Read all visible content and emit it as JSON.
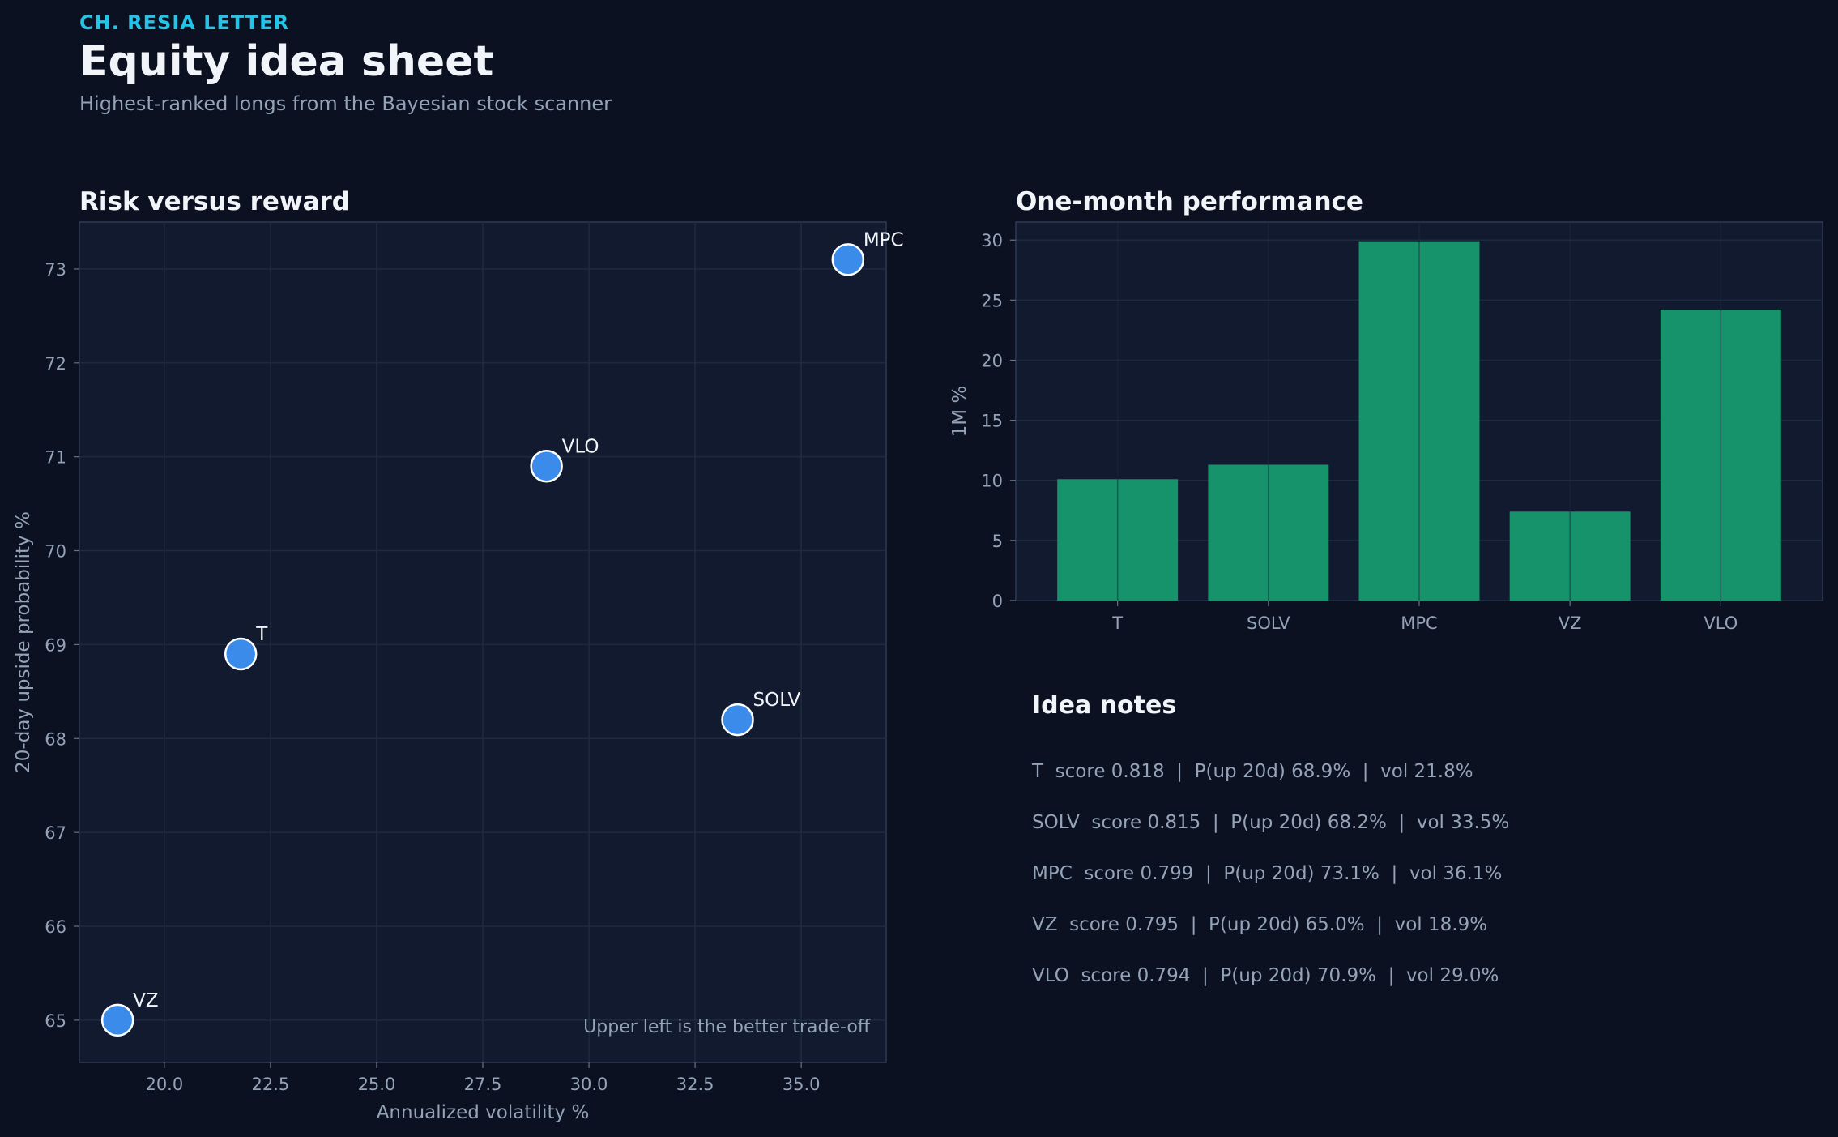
{
  "header": {
    "kicker": "CH. RESIA LETTER",
    "title": "Equity idea sheet",
    "subtitle": "Highest-ranked longs from the Bayesian stock scanner"
  },
  "colors": {
    "background": "#0b1120",
    "panel": "#111a2e",
    "point": "#3b8bea",
    "bar": "#17936b",
    "accent": "#22c4e8",
    "muted_text": "#94a3b8"
  },
  "chart_data": [
    {
      "type": "scatter",
      "title": "Risk versus reward",
      "xlabel": "Annualized volatility %",
      "ylabel": "20-day upside probability %",
      "xlim": [
        18,
        37
      ],
      "ylim": [
        64.55,
        73.5
      ],
      "xticks": [
        "20.0",
        "22.5",
        "25.0",
        "27.5",
        "30.0",
        "32.5",
        "35.0"
      ],
      "yticks": [
        "65",
        "66",
        "67",
        "68",
        "69",
        "70",
        "71",
        "72",
        "73"
      ],
      "grid": true,
      "annotation": "Upper left is the better trade-off",
      "points": [
        {
          "label": "T",
          "x": 21.8,
          "y": 68.9
        },
        {
          "label": "SOLV",
          "x": 33.5,
          "y": 68.2
        },
        {
          "label": "MPC",
          "x": 36.1,
          "y": 73.1
        },
        {
          "label": "VZ",
          "x": 18.9,
          "y": 65.0
        },
        {
          "label": "VLO",
          "x": 29.0,
          "y": 70.9
        }
      ]
    },
    {
      "type": "bar",
      "title": "One-month performance",
      "xlabel": "",
      "ylabel": "1M %",
      "categories": [
        "T",
        "SOLV",
        "MPC",
        "VZ",
        "VLO"
      ],
      "values": [
        10.1,
        11.3,
        29.9,
        7.4,
        24.2
      ],
      "ylim": [
        0,
        31.5
      ],
      "yticks": [
        "0",
        "5",
        "10",
        "15",
        "20",
        "25",
        "30"
      ],
      "grid": true
    }
  ],
  "notes": {
    "title": "Idea notes",
    "items": [
      "T  score 0.818  |  P(up 20d) 68.9%  |  vol 21.8%",
      "SOLV  score 0.815  |  P(up 20d) 68.2%  |  vol 33.5%",
      "MPC  score 0.799  |  P(up 20d) 73.1%  |  vol 36.1%",
      "VZ  score 0.795  |  P(up 20d) 65.0%  |  vol 18.9%",
      "VLO  score 0.794  |  P(up 20d) 70.9%  |  vol 29.0%"
    ]
  }
}
